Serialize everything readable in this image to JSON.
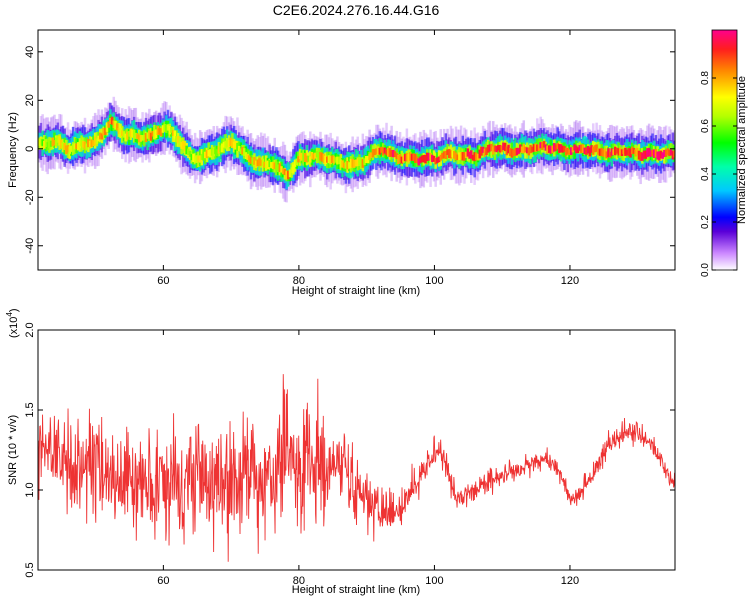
{
  "title": "C2E6.2024.276.16.44.G16",
  "chart_data": [
    {
      "type": "heatmap",
      "xlabel": "Height of straight line (km)",
      "ylabel": "Frequency (Hz)",
      "xlim": [
        41.5,
        135.5
      ],
      "ylim": [
        -50,
        49
      ],
      "xticks": [
        60,
        80,
        100,
        120
      ],
      "yticks": [
        -40,
        -20,
        0,
        20,
        40
      ],
      "colorbar": {
        "label": "Normalized spectral amplitude",
        "range": [
          0,
          1
        ],
        "ticks": [
          0.0,
          0.2,
          0.4,
          0.6,
          0.8
        ]
      },
      "ridge_x": [
        42,
        44,
        46,
        48,
        50,
        52,
        54,
        56,
        58,
        60,
        62,
        64,
        66,
        68,
        70,
        72,
        74,
        76,
        78,
        80,
        82,
        84,
        86,
        88,
        90,
        92,
        94,
        96,
        98,
        100,
        102,
        104,
        106,
        108,
        110,
        112,
        114,
        116,
        118,
        120,
        122,
        124,
        126,
        128,
        130,
        132,
        134,
        135
      ],
      "ridge_freq_hz": [
        2,
        3,
        0,
        2,
        3,
        11,
        6,
        5,
        5,
        9,
        4,
        -4,
        -3,
        0,
        3,
        -3,
        -6,
        -6,
        -11,
        -4,
        -3,
        -4,
        -6,
        -7,
        -4,
        0,
        -3,
        -4,
        -4,
        -4,
        -2,
        -3,
        -3,
        0,
        0,
        -1,
        0,
        1,
        0,
        -1,
        0,
        -1,
        -2,
        -1,
        -2,
        -2,
        -2,
        -2
      ],
      "ridge_amplitude": [
        0.65,
        0.7,
        0.75,
        0.75,
        0.78,
        0.8,
        0.75,
        0.72,
        0.78,
        0.7,
        0.7,
        0.65,
        0.68,
        0.7,
        0.68,
        0.72,
        0.72,
        0.7,
        0.78,
        0.7,
        0.72,
        0.75,
        0.7,
        0.72,
        0.75,
        0.85,
        0.9,
        0.85,
        0.95,
        0.85,
        0.8,
        0.85,
        0.88,
        0.85,
        0.9,
        0.88,
        0.85,
        0.9,
        0.88,
        0.9,
        0.88,
        0.9,
        0.88,
        0.88,
        0.9,
        0.92,
        0.95,
        0.95
      ]
    },
    {
      "type": "line",
      "xlabel": "Height of straight line (km)",
      "ylabel": "SNR (10 * v/v)",
      "y_multiplier_label": "(x10",
      "y_multiplier_exp": "4",
      "y_multiplier_close": ")",
      "xlim": [
        41.5,
        135.5
      ],
      "ylim": [
        0.5,
        2.0
      ],
      "xticks": [
        60,
        80,
        100,
        120
      ],
      "yticks": [
        0.5,
        1.0,
        1.5,
        2.0
      ],
      "series_color": "#ee3333",
      "envelope_x": [
        42,
        45,
        50,
        55,
        60,
        65,
        70,
        75,
        78,
        82,
        85,
        88,
        91,
        93,
        95,
        97,
        99,
        100,
        101,
        102,
        103,
        104,
        106,
        108,
        110,
        112,
        114,
        116,
        118,
        119,
        120,
        121,
        122,
        124,
        126,
        128,
        130,
        132,
        134,
        135
      ],
      "envelope_mean": [
        1.25,
        1.15,
        1.1,
        1.05,
        1.05,
        1.05,
        1.05,
        1.1,
        1.2,
        1.15,
        1.1,
        1.05,
        0.9,
        0.85,
        0.88,
        1.0,
        1.15,
        1.25,
        1.25,
        1.1,
        0.95,
        0.95,
        1.0,
        1.05,
        1.1,
        1.12,
        1.15,
        1.2,
        1.15,
        1.05,
        0.95,
        0.95,
        1.0,
        1.15,
        1.3,
        1.35,
        1.35,
        1.3,
        1.15,
        1.05
      ],
      "envelope_spread": [
        0.25,
        0.3,
        0.3,
        0.3,
        0.3,
        0.3,
        0.3,
        0.35,
        0.4,
        0.35,
        0.25,
        0.22,
        0.15,
        0.12,
        0.12,
        0.12,
        0.1,
        0.1,
        0.08,
        0.08,
        0.07,
        0.06,
        0.06,
        0.07,
        0.07,
        0.06,
        0.06,
        0.06,
        0.05,
        0.05,
        0.05,
        0.05,
        0.05,
        0.06,
        0.07,
        0.07,
        0.06,
        0.06,
        0.06,
        0.06
      ]
    }
  ]
}
